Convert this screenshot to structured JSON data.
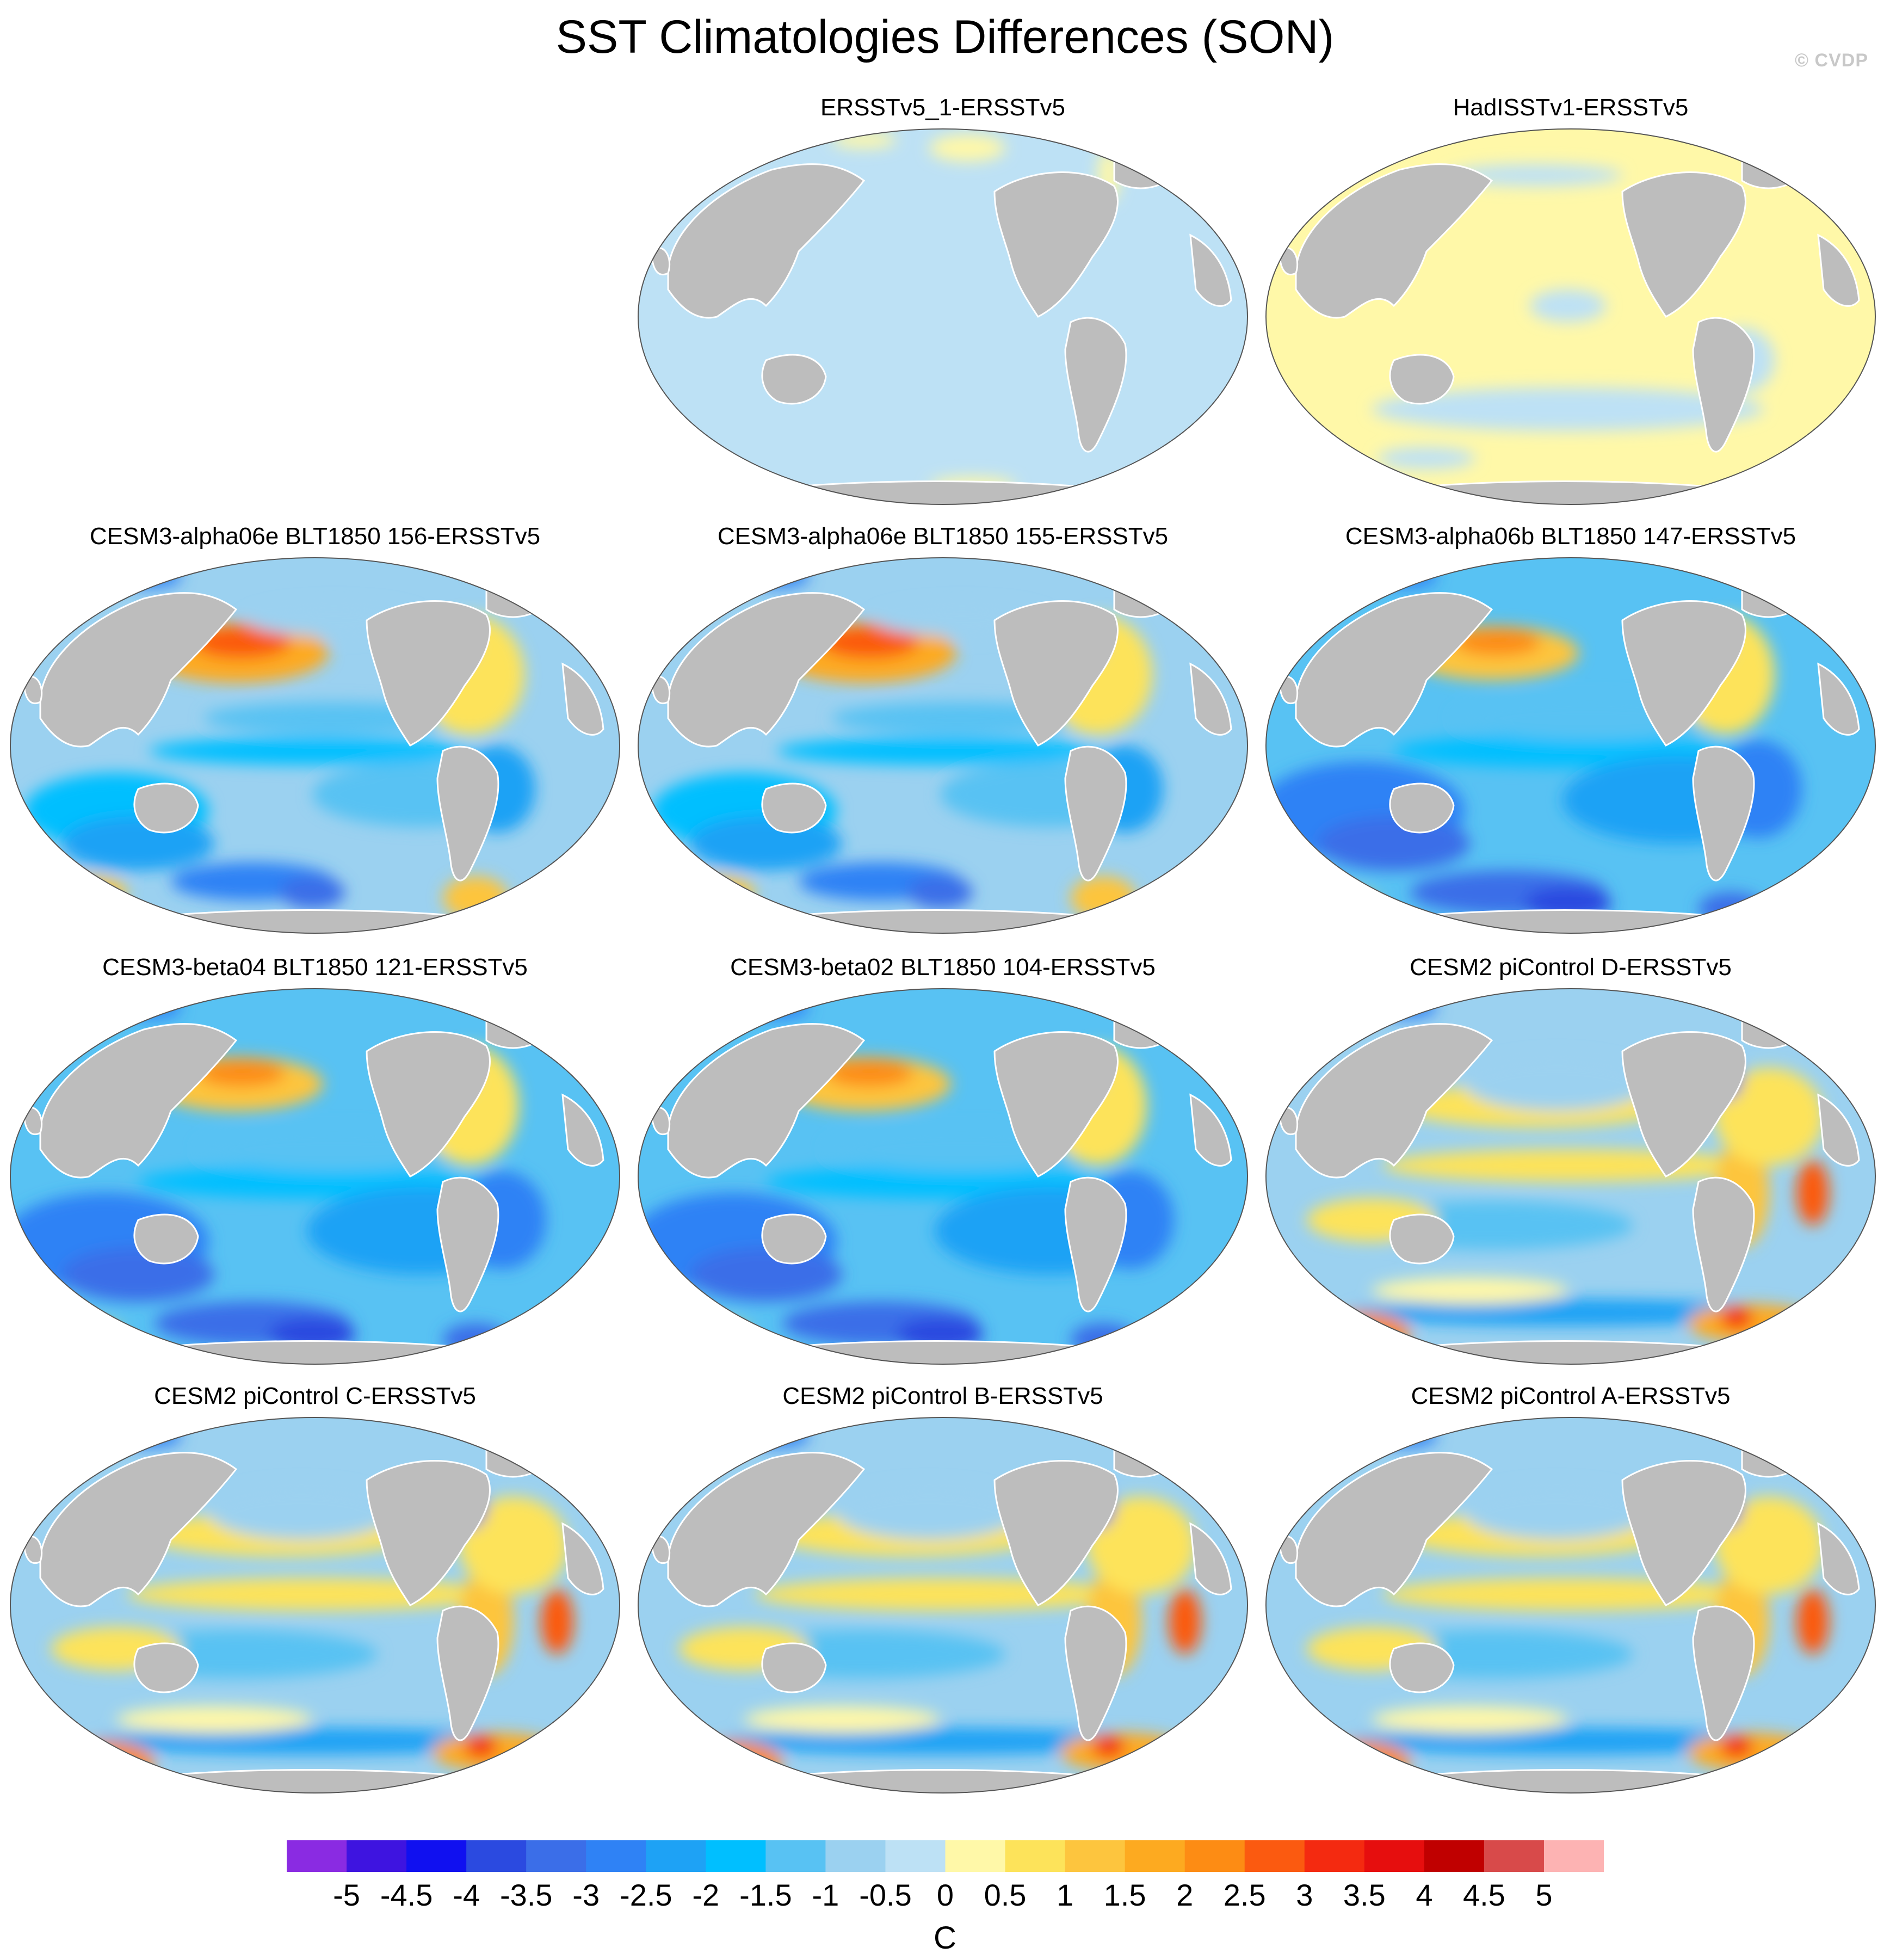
{
  "title": "SST Climatologies Differences (SON)",
  "watermark": "© CVDP",
  "panels": [
    {
      "title": "ERSSTv5_1-ERSSTv5",
      "pattern": "near_zero_cool"
    },
    {
      "title": "HadISSTv1-ERSSTv5",
      "pattern": "near_zero_warm"
    },
    {
      "title": "CESM3-alpha06e BLT1850 156-ERSSTv5",
      "pattern": "cesm3"
    },
    {
      "title": "CESM3-alpha06e BLT1850 155-ERSSTv5",
      "pattern": "cesm3"
    },
    {
      "title": "CESM3-alpha06b BLT1850 147-ERSSTv5",
      "pattern": "cesm3_cold"
    },
    {
      "title": "CESM3-beta04 BLT1850 121-ERSSTv5",
      "pattern": "cesm3_cold"
    },
    {
      "title": "CESM3-beta02 BLT1850 104-ERSSTv5",
      "pattern": "cesm3_cold"
    },
    {
      "title": "CESM2 piControl D-ERSSTv5",
      "pattern": "cesm2"
    },
    {
      "title": "CESM2 piControl C-ERSSTv5",
      "pattern": "cesm2"
    },
    {
      "title": "CESM2 piControl B-ERSSTv5",
      "pattern": "cesm2"
    },
    {
      "title": "CESM2 piControl A-ERSSTv5",
      "pattern": "cesm2"
    }
  ],
  "colorbar": {
    "units": "C",
    "tick_labels": [
      "-5",
      "-4.5",
      "-4",
      "-3.5",
      "-3",
      "-2.5",
      "-2",
      "-1.5",
      "-1",
      "-0.5",
      "0",
      "0.5",
      "1",
      "1.5",
      "2",
      "2.5",
      "3",
      "3.5",
      "4",
      "4.5",
      "5"
    ],
    "colors": [
      "#8a2be2",
      "#3e14e0",
      "#1010f0",
      "#2b4ae0",
      "#3b6ee8",
      "#2f82f5",
      "#1ea2f5",
      "#00bfff",
      "#58c2f3",
      "#9bd1f0",
      "#bde1f5",
      "#fff8a8",
      "#fde35a",
      "#fdc53e",
      "#fdaa20",
      "#fd8c14",
      "#fb5a10",
      "#f42a10",
      "#e60e0e",
      "#c00000",
      "#d84a4a",
      "#fdb3b3"
    ]
  },
  "land_color": "#bdbdbd",
  "ocean_base_color": "#c2e3f5"
}
